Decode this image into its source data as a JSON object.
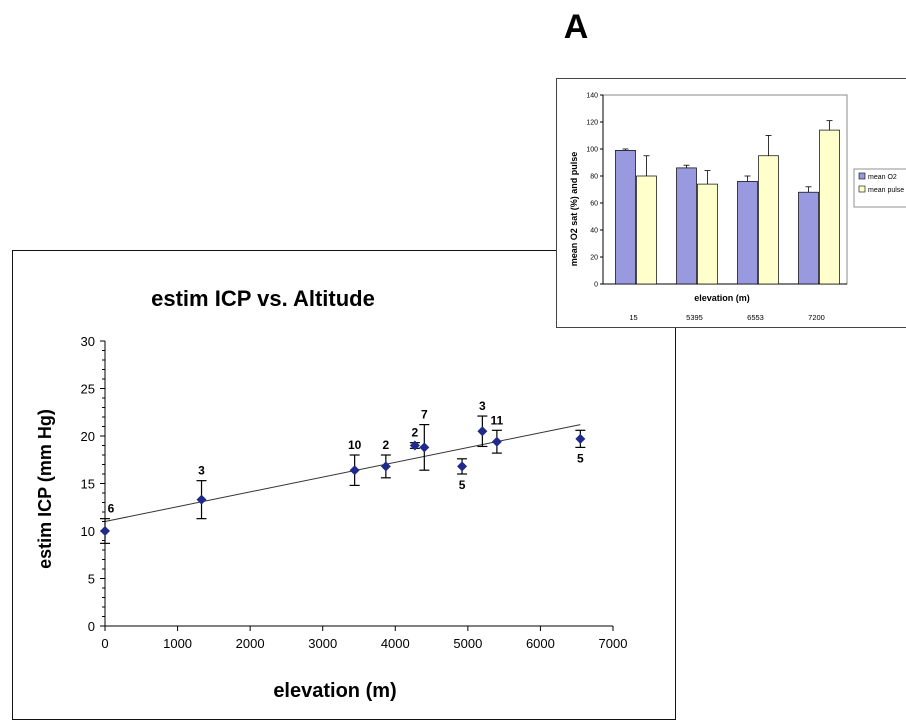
{
  "panel_label": "A",
  "chart_data": [
    {
      "type": "scatter",
      "title": "estim ICP vs. Altitude",
      "xlabel": "elevation (m)",
      "ylabel": "estim ICP (mm Hg)",
      "xlim": [
        0,
        7000
      ],
      "ylim": [
        0,
        30
      ],
      "xticks": [
        "0",
        "1000",
        "2000",
        "3000",
        "4000",
        "5000",
        "6000",
        "7000"
      ],
      "yticks": [
        "0",
        "5",
        "10",
        "15",
        "20",
        "25",
        "30"
      ],
      "points": [
        {
          "x": 0,
          "y": 10,
          "err": 1.3,
          "n": "6",
          "label_pos": "above"
        },
        {
          "x": 1330,
          "y": 13.3,
          "err": 2.0,
          "n": "3",
          "label_pos": "above"
        },
        {
          "x": 3440,
          "y": 16.4,
          "err": 1.6,
          "n": "10",
          "label_pos": "above"
        },
        {
          "x": 3870,
          "y": 16.8,
          "err": 1.2,
          "n": "2",
          "label_pos": "above"
        },
        {
          "x": 4270,
          "y": 19.0,
          "err": 0.3,
          "n": "2",
          "label_pos": "above"
        },
        {
          "x": 4400,
          "y": 18.8,
          "err": 2.4,
          "n": "7",
          "label_pos": "above"
        },
        {
          "x": 4920,
          "y": 16.8,
          "err": 0.8,
          "n": "5",
          "label_pos": "below"
        },
        {
          "x": 5200,
          "y": 20.5,
          "err": 1.6,
          "n": "3",
          "label_pos": "above"
        },
        {
          "x": 5400,
          "y": 19.4,
          "err": 1.2,
          "n": "11",
          "label_pos": "above"
        },
        {
          "x": 6550,
          "y": 19.7,
          "err": 0.9,
          "n": "5",
          "label_pos": "below"
        }
      ],
      "trendline": {
        "x": [
          0,
          6550
        ],
        "y": [
          11.0,
          21.2
        ]
      },
      "marker_color": "#1f2a8a",
      "grid": false
    },
    {
      "type": "bar",
      "title": "",
      "xlabel": "elevation (m)",
      "ylabel": "mean O2 sat (%) and pulse",
      "ylim": [
        0,
        140
      ],
      "yticks": [
        "0",
        "20",
        "40",
        "60",
        "80",
        "100",
        "120",
        "140"
      ],
      "categories": [
        "15",
        "5395",
        "6553",
        "7200"
      ],
      "series": [
        {
          "name": "mean O2",
          "values": [
            99,
            86,
            76,
            68
          ],
          "err": [
            1,
            2,
            4,
            4
          ],
          "color": "#9999e0"
        },
        {
          "name": "mean pulse",
          "values": [
            80,
            74,
            95,
            114
          ],
          "err": [
            15,
            10,
            15,
            7
          ],
          "color": "#ffffcc"
        }
      ],
      "legend": "right"
    }
  ]
}
